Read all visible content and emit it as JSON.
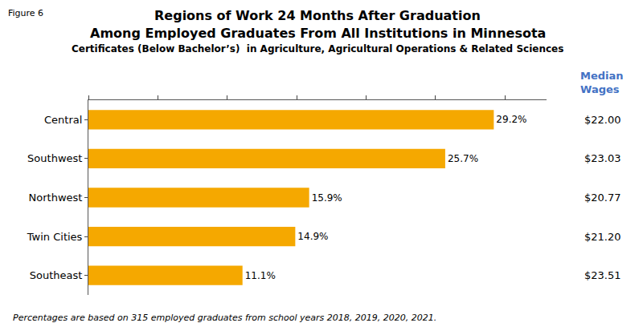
{
  "chart_data": {
    "type": "bar",
    "orientation": "horizontal",
    "title": "Regions of Work 24 Months After Graduation",
    "subtitle": [
      "Among Employed Graduates From All Institutions in Minnesota",
      "Certificates (Below Bachelor’s)  in Agriculture, Agricultural Operations & Related Sciences"
    ],
    "categories": [
      "Southeast",
      "Twin Cities",
      "Northwest",
      "Southwest",
      "Central"
    ],
    "values": [
      11.1,
      14.9,
      15.9,
      25.7,
      29.2
    ],
    "value_labels": [
      "11.1%",
      "14.9%",
      "15.9%",
      "25.7%",
      "29.2%"
    ],
    "data_labels": true,
    "color": "#F5A800",
    "xlim": [
      0,
      33
    ],
    "xticks": [
      0,
      5,
      10,
      15,
      20,
      25,
      30
    ],
    "tick_labels": "y",
    "grid": false,
    "median_wages": {
      "header": "Median\nWages",
      "color": "#4472C4",
      "values": [
        "$23.51",
        "$21.20",
        "$20.77",
        "$23.03",
        "$22.00"
      ]
    },
    "annotations": [
      "Figure 6",
      "Percentages are based on 315 employed graduates from school years 2018, 2019, 2020, 2021."
    ]
  }
}
